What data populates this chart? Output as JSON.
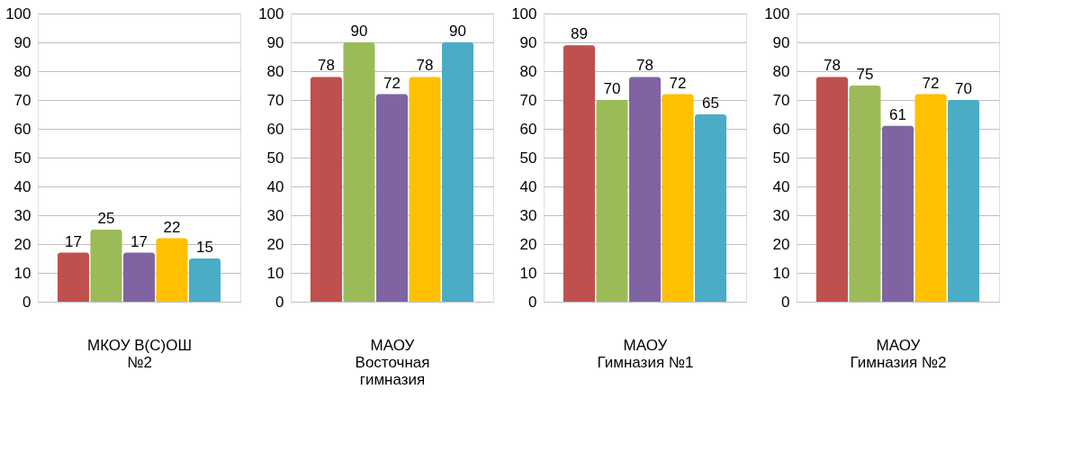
{
  "chart_data": [
    {
      "type": "bar",
      "xlabel": "МКОУ В(С)ОШ\n№2",
      "categories": [
        null,
        null,
        null,
        null,
        null
      ],
      "values": [
        17,
        25,
        17,
        22,
        15
      ],
      "colors": [
        "#c0504d",
        "#9bbb59",
        "#8064a2",
        "#ffc000",
        "#4bacc6"
      ],
      "ylim": [
        0,
        100
      ],
      "yticks": [
        0,
        10,
        20,
        30,
        40,
        50,
        60,
        70,
        80,
        90,
        100
      ],
      "grid": "y",
      "data_labels": true
    },
    {
      "type": "bar",
      "xlabel": "МАОУ\nВосточная\nгимназия",
      "categories": [
        null,
        null,
        null,
        null,
        null
      ],
      "values": [
        78,
        90,
        72,
        78,
        90
      ],
      "colors": [
        "#c0504d",
        "#9bbb59",
        "#8064a2",
        "#ffc000",
        "#4bacc6"
      ],
      "ylim": [
        0,
        100
      ],
      "yticks": [
        0,
        10,
        20,
        30,
        40,
        50,
        60,
        70,
        80,
        90,
        100
      ],
      "grid": "y",
      "data_labels": true
    },
    {
      "type": "bar",
      "xlabel": "МАОУ\nГимназия №1",
      "categories": [
        null,
        null,
        null,
        null,
        null
      ],
      "values": [
        89,
        70,
        78,
        72,
        65
      ],
      "colors": [
        "#c0504d",
        "#9bbb59",
        "#8064a2",
        "#ffc000",
        "#4bacc6"
      ],
      "ylim": [
        0,
        100
      ],
      "yticks": [
        0,
        10,
        20,
        30,
        40,
        50,
        60,
        70,
        80,
        90,
        100
      ],
      "grid": "y",
      "data_labels": true
    },
    {
      "type": "bar",
      "xlabel": "МАОУ\nГимназия №2",
      "categories": [
        null,
        null,
        null,
        null,
        null
      ],
      "values": [
        78,
        75,
        61,
        72,
        70
      ],
      "colors": [
        "#c0504d",
        "#9bbb59",
        "#8064a2",
        "#ffc000",
        "#4bacc6"
      ],
      "ylim": [
        0,
        100
      ],
      "yticks": [
        0,
        10,
        20,
        30,
        40,
        50,
        60,
        70,
        80,
        90,
        100
      ],
      "grid": "y",
      "data_labels": true
    }
  ]
}
